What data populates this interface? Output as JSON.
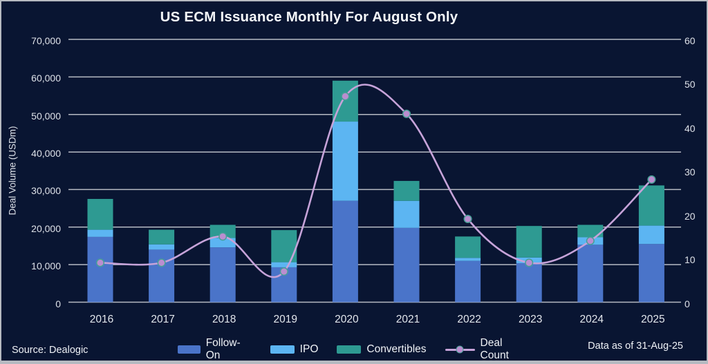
{
  "title": "US ECM Issuance Monthly For August Only",
  "footer": {
    "source": "Source: Dealogic",
    "data_as_of": "Data as of 31-Aug-25"
  },
  "colors": {
    "background": "#091532",
    "border": "#b6bac1",
    "grid": "#c6cad1",
    "follow_on": "#4a74c9",
    "ipo": "#5cb5f2",
    "convertibles": "#2e9a92",
    "deal_count_line": "#c6a3d9",
    "deal_count_marker": "#ba8ed0",
    "marker_ring": "#46a096",
    "text": "#eef1f6"
  },
  "chart_data": {
    "type": "bar",
    "stacked": true,
    "title": "US ECM Issuance Monthly For August Only",
    "categories": [
      "2016",
      "2017",
      "2018",
      "2019",
      "2020",
      "2021",
      "2022",
      "2023",
      "2024",
      "2025"
    ],
    "series": [
      {
        "name": "Follow-On",
        "color": "#4a74c9",
        "values": [
          17400,
          14000,
          14600,
          9300,
          27000,
          19800,
          11000,
          10400,
          15300,
          15500
        ]
      },
      {
        "name": "IPO",
        "color": "#5cb5f2",
        "values": [
          1900,
          1400,
          2500,
          1350,
          21100,
          7200,
          800,
          1500,
          2000,
          4900
        ]
      },
      {
        "name": "Convertibles",
        "color": "#2e9a92",
        "values": [
          8200,
          3900,
          3500,
          8550,
          10900,
          5300,
          5700,
          8400,
          3300,
          10700
        ]
      }
    ],
    "line_series": {
      "name": "Deal Count",
      "axis": "right",
      "color": "#c6a3d9",
      "marker_color": "#ba8ed0",
      "values": [
        9,
        9,
        15,
        7,
        47,
        43,
        19,
        9,
        14,
        28
      ]
    },
    "left_axis": {
      "label": "Deal Volume (USDm)",
      "min": 0,
      "max": 70000,
      "step": 10000,
      "ticks": [
        "0",
        "10,000",
        "20,000",
        "30,000",
        "40,000",
        "50,000",
        "60,000",
        "70,000"
      ]
    },
    "right_axis": {
      "min": 0,
      "max": 60,
      "step": 10,
      "ticks": [
        "0",
        "10",
        "20",
        "30",
        "40",
        "50",
        "60"
      ]
    },
    "legend": [
      "Follow-On",
      "IPO",
      "Convertibles",
      "Deal Count"
    ],
    "legend_position": "bottom",
    "grid": true
  }
}
